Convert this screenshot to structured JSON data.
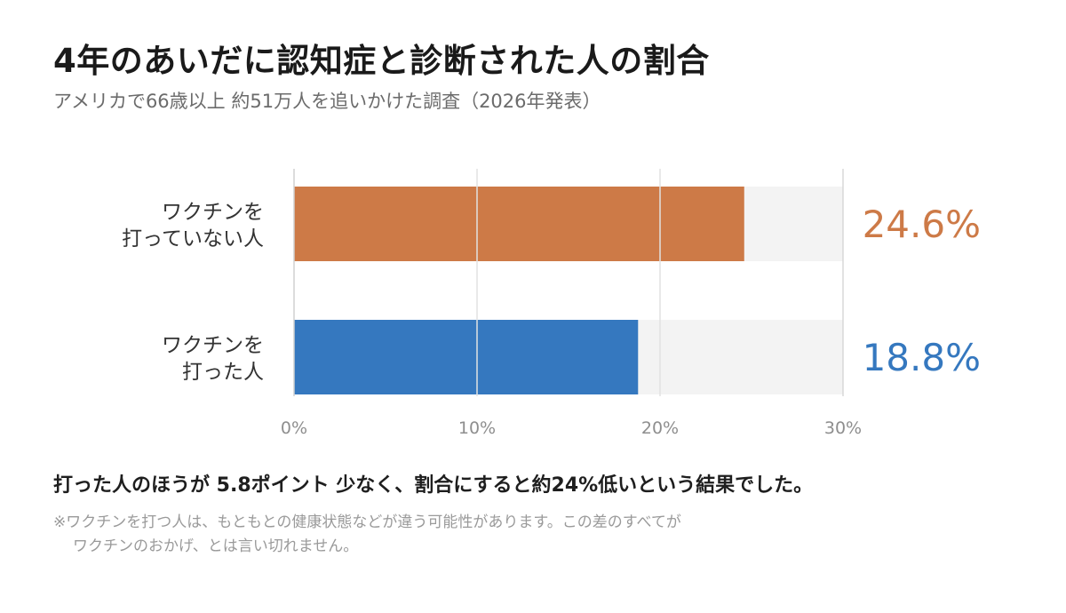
{
  "title": "4年のあいだに認知症と診断された人の割合",
  "subtitle": "アメリカで66歳以上 約51万人を追いかけた調査（2026年発表）",
  "chart_data": {
    "type": "bar",
    "orientation": "horizontal",
    "categories": [
      [
        "ワクチンを",
        "打っていない人"
      ],
      [
        "ワクチンを",
        "打った人"
      ]
    ],
    "values": [
      24.6,
      18.8
    ],
    "value_labels": [
      "24.6%",
      "18.8%"
    ],
    "colors": [
      "#cd7a47",
      "#3578bf"
    ],
    "xlim": [
      0,
      30
    ],
    "xticks": [
      0,
      10,
      20,
      30
    ],
    "xtick_labels": [
      "0%",
      "10%",
      "20%",
      "30%"
    ],
    "grid": true,
    "track_color": "#f3f3f3"
  },
  "conclusion": "打った人のほうが 5.8ポイント 少なく、割合にすると約24%低いという結果でした。",
  "note": {
    "line1": "※ワクチンを打つ人は、もともとの健康状態などが違う可能性があります。この差のすべてが",
    "line2": "ワクチンのおかげ、とは言い切れません。"
  }
}
